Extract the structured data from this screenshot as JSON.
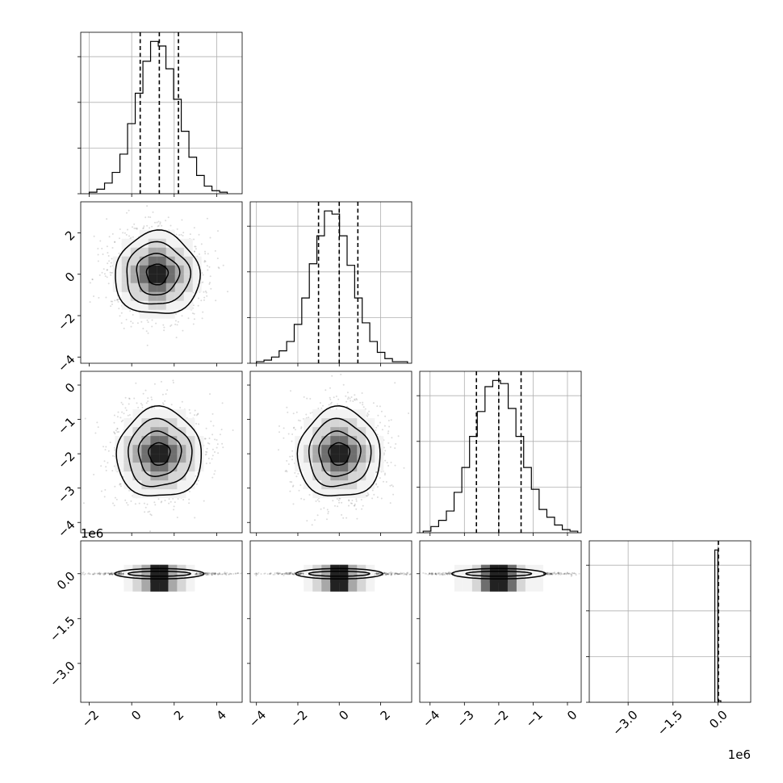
{
  "chart_data": {
    "type": "corner",
    "grid": true,
    "n_params": 4,
    "parameters": [
      {
        "ticks": [
          -2,
          0,
          2,
          4
        ],
        "tick_labels": [
          "−2",
          "0",
          "2",
          "4"
        ],
        "range": [
          -2.4,
          5.2
        ],
        "offset_label": "",
        "histogram": {
          "bin_range": [
            -2.0,
            4.5
          ],
          "counts": [
            1,
            3,
            7,
            14,
            26,
            46,
            66,
            87,
            100,
            97,
            82,
            62,
            41,
            24,
            12,
            5,
            2,
            1
          ]
        },
        "quantiles": [
          0.4,
          1.3,
          2.2
        ]
      },
      {
        "ticks": [
          -4,
          -2,
          0,
          2
        ],
        "tick_labels": [
          "−4",
          "−2",
          "0",
          "2"
        ],
        "range": [
          -4.3,
          3.5
        ],
        "offset_label": "",
        "histogram": {
          "bin_range": [
            -4.0,
            3.3
          ],
          "counts": [
            1,
            2,
            4,
            8,
            14,
            25,
            42,
            64,
            82,
            98,
            96,
            82,
            63,
            42,
            26,
            14,
            7,
            3,
            1,
            1
          ]
        },
        "quantiles": [
          -1.0,
          0.0,
          0.9
        ]
      },
      {
        "ticks": [
          -4,
          -3,
          -2,
          -1,
          0
        ],
        "tick_labels": [
          "−4",
          "−3",
          "−2",
          "−1",
          "0"
        ],
        "range": [
          -4.3,
          0.4
        ],
        "offset_label": "",
        "histogram": {
          "bin_range": [
            -4.2,
            0.3
          ],
          "counts": [
            1,
            4,
            8,
            14,
            26,
            42,
            62,
            78,
            94,
            98,
            96,
            80,
            62,
            42,
            28,
            15,
            10,
            5,
            2,
            1
          ]
        },
        "quantiles": [
          -2.65,
          -2.0,
          -1.35
        ]
      },
      {
        "ticks": [
          -3.0,
          -1.5,
          0.0
        ],
        "tick_labels": [
          "−3.0",
          "−1.5",
          "0.0"
        ],
        "range": [
          -4.3,
          1.1
        ],
        "offset_label": "1e6",
        "histogram": {
          "bin_edges": [
            -0.1,
            0.0,
            0.1
          ],
          "counts": [
            100,
            1
          ]
        },
        "quantiles": [
          0.02
        ]
      }
    ],
    "pairs": [
      {
        "row": 1,
        "col": 0,
        "center": [
          1.2,
          0.0
        ],
        "sigma": [
          1.0,
          1.0
        ]
      },
      {
        "row": 2,
        "col": 0,
        "center": [
          1.3,
          -2.0
        ],
        "sigma": [
          1.0,
          0.65
        ]
      },
      {
        "row": 2,
        "col": 1,
        "center": [
          0.0,
          -2.0
        ],
        "sigma": [
          1.0,
          0.65
        ]
      },
      {
        "row": 3,
        "col": 0,
        "center": [
          1.3,
          0.0
        ],
        "sigma": [
          1.0,
          0.02
        ]
      },
      {
        "row": 3,
        "col": 1,
        "center": [
          0.0,
          0.0
        ],
        "sigma": [
          1.0,
          0.02
        ]
      },
      {
        "row": 3,
        "col": 2,
        "center": [
          -2.0,
          0.0
        ],
        "sigma": [
          0.65,
          0.02
        ]
      }
    ]
  }
}
